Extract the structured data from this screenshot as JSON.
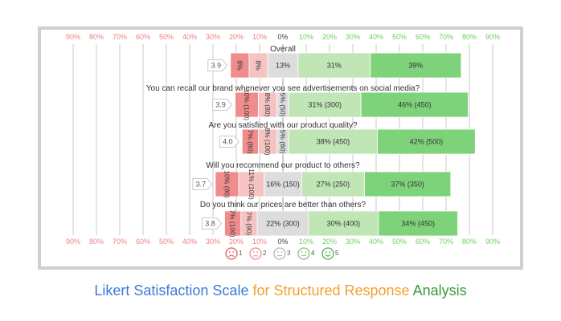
{
  "chart_data": {
    "type": "bar",
    "subtype": "diverging-stacked-likert",
    "axis_ticks_left": [
      "90%",
      "80%",
      "70%",
      "60%",
      "50%",
      "40%",
      "30%",
      "20%",
      "10%"
    ],
    "axis_tick_center": "0%",
    "axis_ticks_right": [
      "10%",
      "20%",
      "30%",
      "40%",
      "50%",
      "60%",
      "70%",
      "80%",
      "90%"
    ],
    "xlim": [
      -90,
      90
    ],
    "colors": [
      "#f08c8c",
      "#f6c3c3",
      "#dddddd",
      "#bfe6b4",
      "#7ed37a"
    ],
    "questions": [
      {
        "title": "Overall",
        "mean": "3.9",
        "values": [
          8,
          8,
          13,
          31,
          39
        ],
        "labels": [
          "8%",
          "8%",
          "13%",
          "31%",
          "39%"
        ]
      },
      {
        "title": "You can recall our brand whenever you see advertisements on social media?",
        "mean": "3.9",
        "values": [
          10,
          8,
          5,
          31,
          46
        ],
        "labels": [
          "10% (100)",
          "8% (80)",
          "5% (50)",
          "31% (300)",
          "46% (450)"
        ]
      },
      {
        "title": "Are you satisfied with our product quality?",
        "mean": "4.0",
        "values": [
          7,
          8,
          5,
          38,
          42
        ],
        "labels": [
          "7% (80)",
          "8% (100)",
          "5% (60)",
          "38% (450)",
          "42% (500)"
        ]
      },
      {
        "title": "Will you recommend our product to others?",
        "mean": "3.7",
        "values": [
          10,
          11,
          16,
          27,
          37
        ],
        "labels": [
          "10% (90)",
          "11% (100)",
          "16% (150)",
          "27% (250)",
          "37% (350)"
        ]
      },
      {
        "title": "Do you think our prices are better than others?",
        "mean": "3.8",
        "values": [
          7,
          7,
          22,
          30,
          34
        ],
        "labels": [
          "7% (100)",
          "7% (90)",
          "22% (300)",
          "30% (400)",
          "34% (450)"
        ]
      }
    ],
    "legend": {
      "position": "bottom",
      "items": [
        {
          "label": "1",
          "icon": "very-unhappy-face-icon",
          "color": "#e35d5d"
        },
        {
          "label": "2",
          "icon": "unhappy-face-icon",
          "color": "#f08c8c"
        },
        {
          "label": "3",
          "icon": "neutral-face-icon",
          "color": "#b5b5b5"
        },
        {
          "label": "4",
          "icon": "happy-face-icon",
          "color": "#7ec96f"
        },
        {
          "label": "5",
          "icon": "very-happy-face-icon",
          "color": "#4cb04c"
        }
      ]
    }
  },
  "caption": {
    "part1": "Likert Satisfaction Scale",
    "part2": "for Structured Response",
    "part3": "Analysis"
  }
}
